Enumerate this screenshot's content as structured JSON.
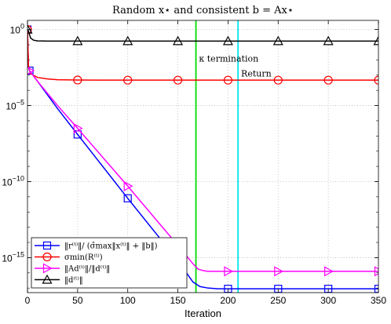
{
  "chart_data": {
    "type": "line",
    "title": "Random x⋆ and consistent b = Ax⋆",
    "xlabel": "Iteration",
    "ylabel": "",
    "xlim": [
      0,
      350
    ],
    "ylim_log10": [
      -17.3,
      0.6
    ],
    "yscale": "log",
    "grid": true,
    "legend_position": "bottom-left",
    "x_ticks": [
      "0",
      "50",
      "100",
      "150",
      "200",
      "250",
      "300",
      "350"
    ],
    "y_ticks": [
      {
        "base": "10",
        "exp": "0",
        "log10": 0
      },
      {
        "base": "10",
        "exp": "−5",
        "log10": -5
      },
      {
        "base": "10",
        "exp": "−10",
        "log10": -10
      },
      {
        "base": "10",
        "exp": "−15",
        "log10": -15
      }
    ],
    "vlines": [
      {
        "x": 168,
        "color": "#00dd00"
      },
      {
        "x": 210,
        "color": "#00e5ee"
      }
    ],
    "annotations": [
      {
        "text": "κ termination",
        "x": 171,
        "y_log10": -2.1
      },
      {
        "text": "Return",
        "x": 213,
        "y_log10": -3.1
      }
    ],
    "series": [
      {
        "name": "‖r⁽ᵗ⁾‖/ (σ̂max‖x⁽ᵗ⁾‖ + ‖b‖)",
        "color": "#0000ff",
        "marker": "square",
        "x": [
          0,
          1,
          2,
          10,
          30,
          50,
          100,
          150,
          165,
          172,
          180,
          190,
          200,
          250,
          300,
          350
        ],
        "log10y": [
          0.0,
          -2.5,
          -2.7,
          -3.4,
          -5.2,
          -6.9,
          -11.1,
          -15.2,
          -16.6,
          -16.9,
          -17.0,
          -17.05,
          -17.05,
          -17.05,
          -17.05,
          -17.05
        ],
        "marker_x": [
          0,
          2,
          50,
          100,
          150,
          200,
          250,
          300,
          350
        ]
      },
      {
        "name": "σmin(R⁽ᵗ⁾)",
        "color": "#ff0000",
        "marker": "circle",
        "x": [
          0,
          1,
          3,
          10,
          20,
          30,
          50,
          100,
          150,
          200,
          250,
          300,
          350
        ],
        "log10y": [
          0.0,
          -2.4,
          -2.9,
          -3.15,
          -3.25,
          -3.3,
          -3.32,
          -3.33,
          -3.33,
          -3.33,
          -3.33,
          -3.33,
          -3.33
        ],
        "marker_x": [
          0,
          50,
          100,
          150,
          200,
          250,
          300,
          350
        ]
      },
      {
        "name": "‖Ad⁽ᵗ⁾‖/‖d⁽ᵗ⁾‖",
        "color": "#ff00ff",
        "marker": "triangle-right",
        "x": [
          0,
          1,
          2,
          10,
          30,
          50,
          100,
          150,
          165,
          170,
          175,
          180,
          200,
          250,
          300,
          350
        ],
        "log10y": [
          -2.5,
          -2.5,
          -2.7,
          -3.4,
          -5.0,
          -6.5,
          -10.3,
          -14.2,
          -15.4,
          -15.75,
          -15.85,
          -15.9,
          -15.9,
          -15.9,
          -15.9,
          -15.9
        ],
        "marker_x": [
          2,
          50,
          100,
          150,
          200,
          250,
          300,
          350
        ]
      },
      {
        "name": "‖d⁽ᵗ⁾‖",
        "color": "#000000",
        "marker": "triangle-up",
        "x": [
          0,
          1,
          3,
          6,
          10,
          20,
          50,
          100,
          150,
          200,
          250,
          300,
          350
        ],
        "log10y": [
          0.0,
          -0.1,
          -0.55,
          -0.7,
          -0.75,
          -0.76,
          -0.76,
          -0.76,
          -0.76,
          -0.76,
          -0.76,
          -0.76,
          -0.76
        ],
        "marker_x": [
          0,
          50,
          100,
          150,
          200,
          250,
          300,
          350
        ]
      }
    ]
  }
}
